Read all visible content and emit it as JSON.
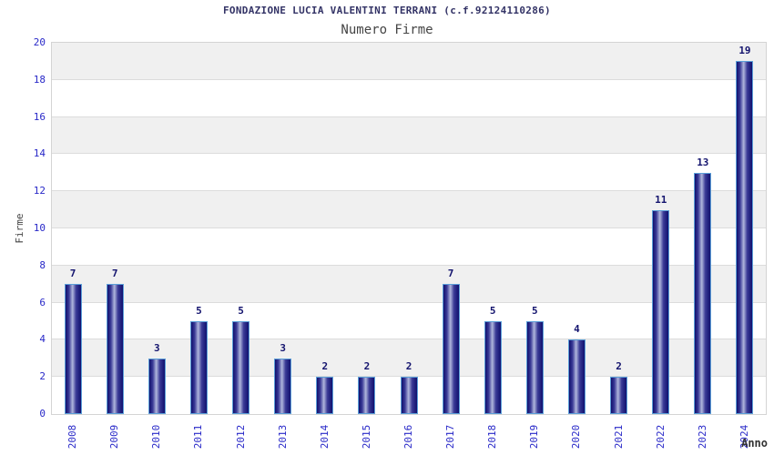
{
  "header": {
    "title": "FONDAZIONE LUCIA VALENTINI TERRANI (c.f.92124110286)",
    "subtitle": "Numero Firme"
  },
  "chart_data": {
    "type": "bar",
    "title": "FONDAZIONE LUCIA VALENTINI TERRANI (c.f.92124110286)",
    "subtitle": "Numero Firme",
    "xlabel": "Anno",
    "ylabel": "Firme",
    "categories": [
      "2008",
      "2009",
      "2010",
      "2011",
      "2012",
      "2013",
      "2014",
      "2015",
      "2016",
      "2017",
      "2018",
      "2019",
      "2020",
      "2021",
      "2022",
      "2023",
      "2024"
    ],
    "values": [
      7,
      7,
      3,
      5,
      5,
      3,
      2,
      2,
      2,
      7,
      5,
      5,
      4,
      2,
      11,
      13,
      19
    ],
    "ylim": [
      0,
      20
    ],
    "ytick_step": 2,
    "grid": true,
    "legend": "none",
    "colors": {
      "tick_label": "#2828c8",
      "value_label": "#14146e",
      "title": "#333366",
      "subtitle": "#444444",
      "bar_edge_dark": "#10106e",
      "bar_center_light": "#b0b6dc",
      "bar_border": "#5b9fd8",
      "band_gray": "#f0f0f0",
      "band_white": "#ffffff",
      "gridline": "#dcdcdc",
      "plot_border": "#d4d4d4"
    }
  }
}
